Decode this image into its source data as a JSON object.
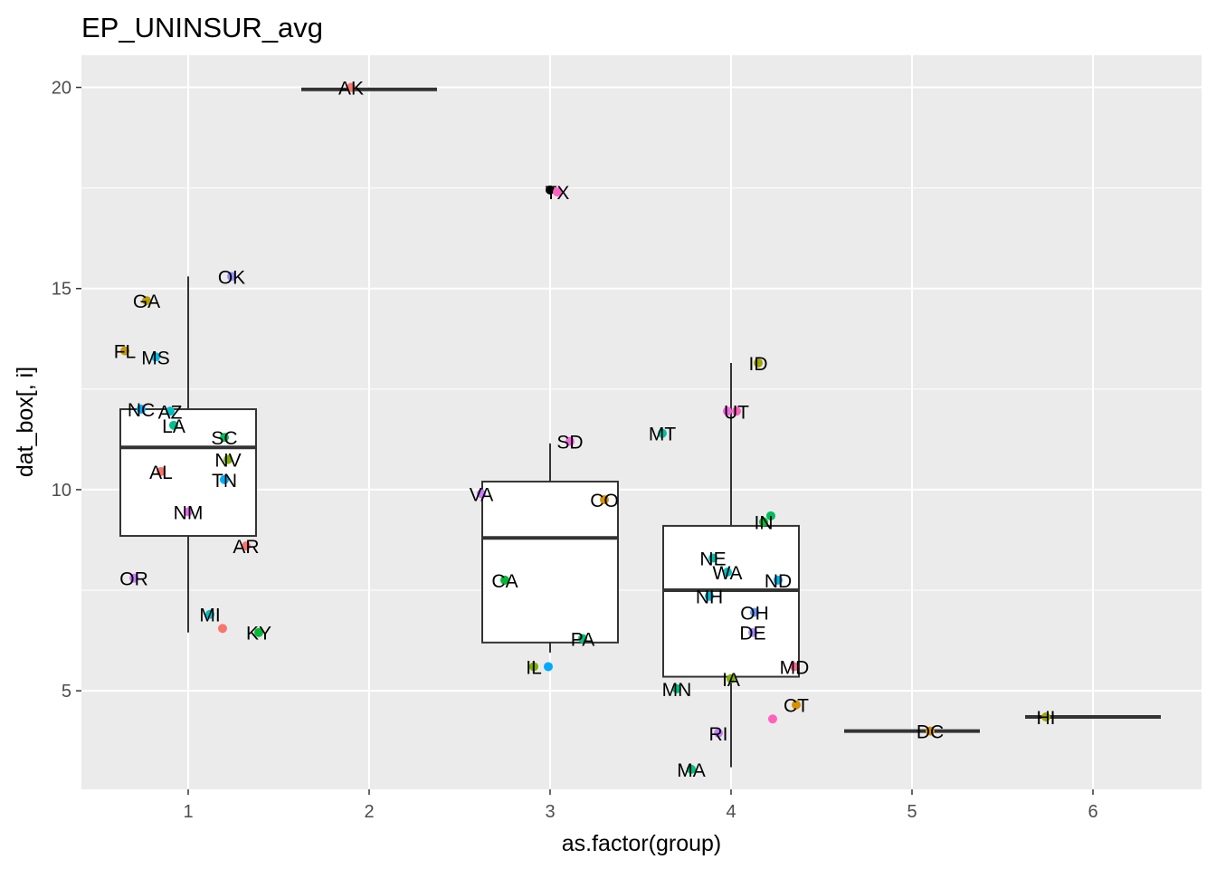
{
  "chart_data": {
    "type": "box",
    "title": "EP_UNINSUR_avg",
    "xlabel": "as.factor(group)",
    "ylabel": "dat_box[, i]",
    "x_ticks": [
      "1",
      "2",
      "3",
      "4",
      "5",
      "6"
    ],
    "y_ticks": [
      5,
      10,
      15,
      20
    ],
    "xlim": [
      0.41,
      6.6
    ],
    "ylim": [
      2.55,
      20.8
    ],
    "grid": true,
    "legend": "none",
    "boxes": [
      {
        "group": 1,
        "q1": 8.85,
        "median": 11.05,
        "q3": 12.0,
        "whisker_low": 6.45,
        "whisker_high": 15.3
      },
      {
        "group": 2,
        "q1": 19.95,
        "median": 19.95,
        "q3": 19.95,
        "whisker_low": 19.95,
        "whisker_high": 19.95
      },
      {
        "group": 3,
        "q1": 6.2,
        "median": 8.8,
        "q3": 10.2,
        "whisker_low": 5.95,
        "whisker_high": 11.15
      },
      {
        "group": 4,
        "q1": 5.35,
        "median": 7.5,
        "q3": 9.1,
        "whisker_low": 3.1,
        "whisker_high": 13.15
      },
      {
        "group": 5,
        "q1": 4.0,
        "median": 4.0,
        "q3": 4.0,
        "whisker_low": 4.0,
        "whisker_high": 4.0
      },
      {
        "group": 6,
        "q1": 4.35,
        "median": 4.35,
        "q3": 4.35,
        "whisker_low": 4.35,
        "whisker_high": 4.35
      }
    ],
    "outliers": [
      {
        "group": 3,
        "y": 17.45
      }
    ],
    "points": [
      {
        "label": "OK",
        "x": 1.24,
        "y": 15.3,
        "color": "#9590FF"
      },
      {
        "label": "GA",
        "x": 0.77,
        "y": 14.7,
        "color": "#B79F00"
      },
      {
        "label": "FL",
        "x": 0.65,
        "y": 13.45,
        "color": "#C49A00"
      },
      {
        "label": "MS",
        "x": 0.82,
        "y": 13.3,
        "color": "#00B8E7"
      },
      {
        "label": "NC",
        "x": 0.74,
        "y": 12.0,
        "color": "#00A9FF"
      },
      {
        "label": "AZ",
        "x": 0.9,
        "y": 11.95,
        "color": "#00BFC4"
      },
      {
        "label": "LA",
        "x": 0.92,
        "y": 11.6,
        "color": "#00C08B"
      },
      {
        "label": "SC",
        "x": 1.2,
        "y": 11.3,
        "color": "#00BD5C"
      },
      {
        "label": "NV",
        "x": 1.22,
        "y": 10.75,
        "color": "#7CAE00"
      },
      {
        "label": "AL",
        "x": 0.85,
        "y": 10.45,
        "color": "#F8766D"
      },
      {
        "label": "TN",
        "x": 1.2,
        "y": 10.25,
        "color": "#00B0F6"
      },
      {
        "label": "NM",
        "x": 1.0,
        "y": 9.45,
        "color": "#E76BF3"
      },
      {
        "label": "AR",
        "x": 1.32,
        "y": 8.6,
        "color": "#F8766D"
      },
      {
        "label": "OR",
        "x": 0.7,
        "y": 7.8,
        "color": "#C77CFF"
      },
      {
        "label": "MI",
        "x": 1.12,
        "y": 6.9,
        "color": "#00BFC4"
      },
      {
        "label": "KY",
        "x": 1.39,
        "y": 6.45,
        "color": "#00BA38"
      },
      {
        "label": "",
        "x": 1.19,
        "y": 6.55,
        "color": "#F8766D"
      },
      {
        "label": "AK",
        "x": 1.9,
        "y": 20.0,
        "color": "#F8766D"
      },
      {
        "label": "TX",
        "x": 3.04,
        "y": 17.4,
        "color": "#FF61C3"
      },
      {
        "label": "SD",
        "x": 3.11,
        "y": 11.2,
        "color": "#F564E3"
      },
      {
        "label": "VA",
        "x": 2.62,
        "y": 9.9,
        "color": "#C77CFF"
      },
      {
        "label": "CO",
        "x": 3.3,
        "y": 9.75,
        "color": "#D39200"
      },
      {
        "label": "CA",
        "x": 2.75,
        "y": 7.75,
        "color": "#00BA38"
      },
      {
        "label": "PA",
        "x": 3.18,
        "y": 6.3,
        "color": "#00BF7D"
      },
      {
        "label": "IL",
        "x": 2.91,
        "y": 5.6,
        "color": "#7CAE00"
      },
      {
        "label": "",
        "x": 2.99,
        "y": 5.6,
        "color": "#00A9FF"
      },
      {
        "label": "MT",
        "x": 3.62,
        "y": 11.4,
        "color": "#00C1A3"
      },
      {
        "label": "ID",
        "x": 4.15,
        "y": 13.15,
        "color": "#A3A500"
      },
      {
        "label": "UT",
        "x": 4.03,
        "y": 11.95,
        "color": "#FF62BC"
      },
      {
        "label": "",
        "x": 3.98,
        "y": 11.95,
        "color": "#F564E3"
      },
      {
        "label": "IN",
        "x": 4.18,
        "y": 9.2,
        "color": "#00BA38"
      },
      {
        "label": "",
        "x": 4.22,
        "y": 9.35,
        "color": "#00BD5C"
      },
      {
        "label": "NE",
        "x": 3.9,
        "y": 8.3,
        "color": "#00C0AF"
      },
      {
        "label": "WA",
        "x": 3.98,
        "y": 7.95,
        "color": "#00BFC4"
      },
      {
        "label": "ND",
        "x": 4.26,
        "y": 7.75,
        "color": "#00B4EF"
      },
      {
        "label": "NH",
        "x": 3.88,
        "y": 7.35,
        "color": "#00BCD8"
      },
      {
        "label": "OH",
        "x": 4.13,
        "y": 6.95,
        "color": "#619CFF"
      },
      {
        "label": "DE",
        "x": 4.12,
        "y": 6.45,
        "color": "#A58AFF"
      },
      {
        "label": "MD",
        "x": 4.35,
        "y": 5.6,
        "color": "#FF6C90"
      },
      {
        "label": "IA",
        "x": 4.0,
        "y": 5.3,
        "color": "#7CAE00"
      },
      {
        "label": "MN",
        "x": 3.7,
        "y": 5.05,
        "color": "#00BF7D"
      },
      {
        "label": "CT",
        "x": 4.36,
        "y": 4.65,
        "color": "#D89000"
      },
      {
        "label": "",
        "x": 4.23,
        "y": 4.3,
        "color": "#FF62BC"
      },
      {
        "label": "RI",
        "x": 3.93,
        "y": 3.95,
        "color": "#C77CFF"
      },
      {
        "label": "MA",
        "x": 3.78,
        "y": 3.05,
        "color": "#00BF7D"
      },
      {
        "label": "DC",
        "x": 5.1,
        "y": 4.0,
        "color": "#D89000"
      },
      {
        "label": "HI",
        "x": 5.74,
        "y": 4.35,
        "color": "#A3A500"
      }
    ]
  }
}
